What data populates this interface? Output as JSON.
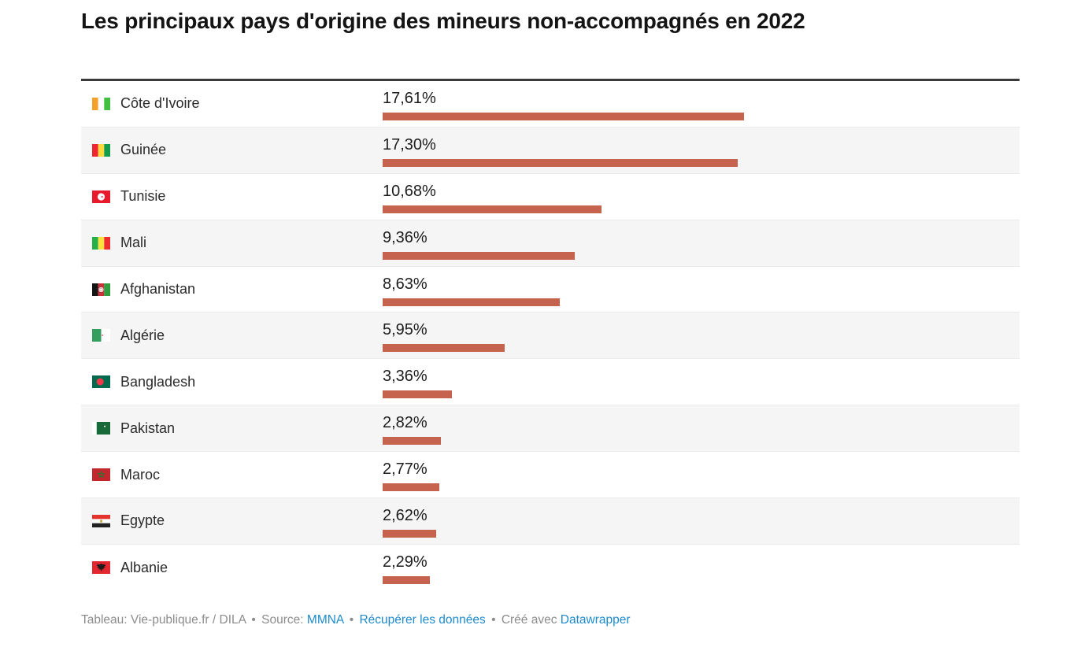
{
  "title": "Les principaux pays d'origine des mineurs non-accompagnés en 2022",
  "colors": {
    "bar": "#c5634e",
    "link": "#1e8bcd",
    "row_stripe": "#f5f5f5",
    "table_top_border": "#3a3a3a"
  },
  "chart_data": {
    "type": "bar",
    "orientation": "horizontal",
    "title": "Les principaux pays d'origine des mineurs non-accompagnés en 2022",
    "unit": "%",
    "bar_color": "#c5634e",
    "max_value": 17.61,
    "grid": false,
    "legend": false,
    "rows": [
      {
        "label": "Côte d'Ivoire",
        "flag": "cote-divoire",
        "value": 17.61,
        "value_label": "17,61%"
      },
      {
        "label": "Guinée",
        "flag": "guinee",
        "value": 17.3,
        "value_label": "17,30%"
      },
      {
        "label": "Tunisie",
        "flag": "tunisie",
        "value": 10.68,
        "value_label": "10,68%"
      },
      {
        "label": "Mali",
        "flag": "mali",
        "value": 9.36,
        "value_label": "9,36%"
      },
      {
        "label": "Afghanistan",
        "flag": "afghanistan",
        "value": 8.63,
        "value_label": "8,63%"
      },
      {
        "label": "Algérie",
        "flag": "algerie",
        "value": 5.95,
        "value_label": "5,95%"
      },
      {
        "label": "Bangladesh",
        "flag": "bangladesh",
        "value": 3.36,
        "value_label": "3,36%"
      },
      {
        "label": "Pakistan",
        "flag": "pakistan",
        "value": 2.82,
        "value_label": "2,82%"
      },
      {
        "label": "Maroc",
        "flag": "maroc",
        "value": 2.77,
        "value_label": "2,77%"
      },
      {
        "label": "Egypte",
        "flag": "egypte",
        "value": 2.62,
        "value_label": "2,62%"
      },
      {
        "label": "Albanie",
        "flag": "albanie",
        "value": 2.29,
        "value_label": "2,29%"
      }
    ]
  },
  "footer": {
    "attribution": "Tableau: Vie-publique.fr / DILA",
    "separator": "•",
    "source_label": "Source:",
    "source_link": "MMNA",
    "data_link": "Récupérer les données",
    "created_label": "Créé avec",
    "created_link": "Datawrapper"
  }
}
